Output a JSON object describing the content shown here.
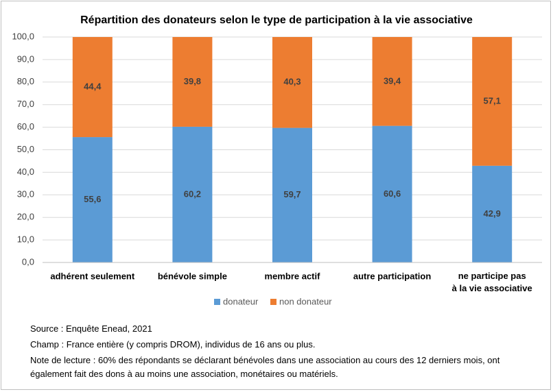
{
  "chart_data": {
    "type": "stacked_bar",
    "title": "Répartition des donateurs selon le type de participation à la vie associative",
    "categories": [
      "adhérent seulement",
      "bénévole simple",
      "membre actif",
      "autre participation",
      "ne participe pas\nà la vie associative"
    ],
    "series": [
      {
        "name": "donateur",
        "color": "#5b9bd5",
        "values": [
          55.6,
          60.2,
          59.7,
          60.6,
          42.9
        ],
        "value_labels": [
          "55,6",
          "60,2",
          "59,7",
          "60,6",
          "42,9"
        ]
      },
      {
        "name": "non donateur",
        "color": "#ed7d31",
        "values": [
          44.4,
          39.8,
          40.3,
          39.4,
          57.1
        ],
        "value_labels": [
          "44,4",
          "39,8",
          "40,3",
          "39,4",
          "57,1"
        ]
      }
    ],
    "ylim": [
      0,
      100
    ],
    "yticks": [
      {
        "value": 0,
        "label": "0,0"
      },
      {
        "value": 10,
        "label": "10,0"
      },
      {
        "value": 20,
        "label": "20,0"
      },
      {
        "value": 30,
        "label": "30,0"
      },
      {
        "value": 40,
        "label": "40,0"
      },
      {
        "value": 50,
        "label": "50,0"
      },
      {
        "value": 60,
        "label": "60,0"
      },
      {
        "value": 70,
        "label": "70,0"
      },
      {
        "value": 80,
        "label": "80,0"
      },
      {
        "value": 90,
        "label": "90,0"
      },
      {
        "value": 100,
        "label": "100,0"
      }
    ],
    "grid": true,
    "legend": "bottom",
    "notes": [
      "Source : Enquête Enead, 2021",
      "Champ : France entière (y compris DROM), individus de 16 ans ou plus.",
      "Note de lecture : 60% des répondants se déclarant bénévoles dans une association au cours des 12 derniers mois, ont également fait des dons à au moins une association, monétaires ou  matériels."
    ]
  }
}
